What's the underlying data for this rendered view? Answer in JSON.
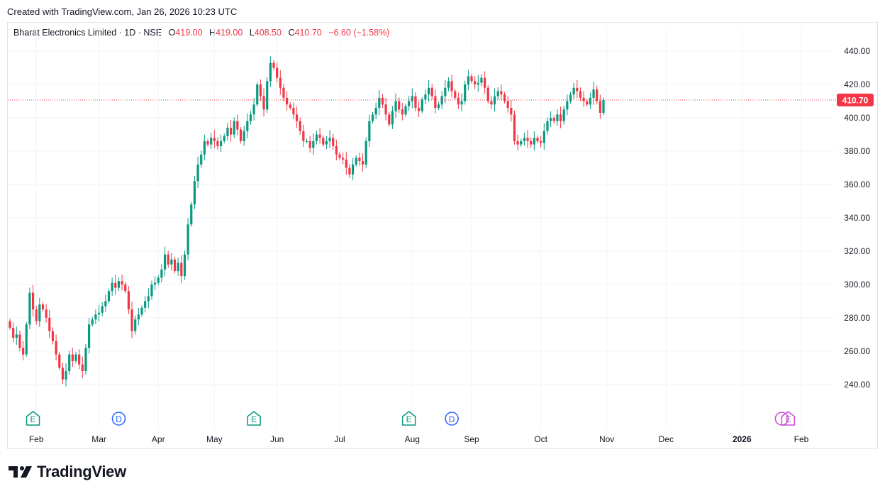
{
  "header": {
    "created_text": "Created with TradingView.com, Jan 26, 2026 10:23 UTC"
  },
  "legend": {
    "symbol": "Bharat Electronics Limited · 1D · NSE",
    "open_label": "O",
    "open": "419.00",
    "high_label": "H",
    "high": "419.00",
    "low_label": "L",
    "low": "408.50",
    "close_label": "C",
    "close": "410.70",
    "change": "−6.60 (−1.58%)"
  },
  "colors": {
    "up": "#089981",
    "down": "#f23645",
    "earnings": "#089981",
    "dividend": "#2962ff",
    "upcoming": "#c94ad8",
    "grid": "#f0f3fa",
    "axis_text": "#131722"
  },
  "footer": {
    "brand": "TradingView",
    "logo_icon": "tradingview-logo-icon"
  },
  "chart_data": {
    "type": "candlestick",
    "title": "Bharat Electronics Limited · 1D · NSE",
    "ylim": [
      228,
      446
    ],
    "y_ticks": [
      "240.00",
      "260.00",
      "280.00",
      "300.00",
      "320.00",
      "340.00",
      "360.00",
      "380.00",
      "400.00",
      "420.00",
      "440.00"
    ],
    "x_labels": [
      {
        "label": "Feb",
        "bar": 8
      },
      {
        "label": "Mar",
        "bar": 27
      },
      {
        "label": "Apr",
        "bar": 45
      },
      {
        "label": "May",
        "bar": 62
      },
      {
        "label": "Jun",
        "bar": 81
      },
      {
        "label": "Jul",
        "bar": 100
      },
      {
        "label": "Aug",
        "bar": 122
      },
      {
        "label": "Sep",
        "bar": 140
      },
      {
        "label": "Oct",
        "bar": 161
      },
      {
        "label": "Nov",
        "bar": 181
      },
      {
        "label": "Dec",
        "bar": 199
      },
      {
        "label": "2026",
        "bar": 222,
        "bold": true
      },
      {
        "label": "Feb",
        "bar": 240
      }
    ],
    "last_price": {
      "value": 410.7,
      "label": "410.70"
    },
    "events": [
      {
        "type": "earnings",
        "symbol": "E",
        "bar": 7
      },
      {
        "type": "dividend",
        "symbol": "D",
        "bar": 33
      },
      {
        "type": "earnings",
        "symbol": "E",
        "bar": 74
      },
      {
        "type": "earnings",
        "symbol": "E",
        "bar": 121
      },
      {
        "type": "dividend",
        "symbol": "D",
        "bar": 134
      },
      {
        "type": "upcoming",
        "symbol": "E",
        "bar": 236
      }
    ],
    "closes": [
      274,
      268,
      270,
      262,
      258,
      276,
      295,
      285,
      278,
      288,
      285,
      280,
      272,
      266,
      258,
      250,
      243,
      248,
      258,
      254,
      258,
      252,
      248,
      262,
      276,
      279,
      282,
      283,
      287,
      290,
      296,
      301,
      298,
      302,
      300,
      296,
      285,
      272,
      279,
      282,
      286,
      290,
      293,
      300,
      301,
      304,
      309,
      318,
      312,
      315,
      308,
      313,
      305,
      318,
      336,
      348,
      362,
      372,
      378,
      386,
      384,
      388,
      386,
      383,
      386,
      389,
      394,
      390,
      398,
      393,
      386,
      392,
      398,
      402,
      408,
      420,
      413,
      405,
      422,
      433,
      430,
      424,
      418,
      412,
      408,
      406,
      402,
      398,
      392,
      386,
      386,
      382,
      386,
      390,
      388,
      384,
      386,
      388,
      383,
      378,
      376,
      375,
      370,
      366,
      372,
      376,
      374,
      372,
      386,
      398,
      402,
      406,
      412,
      408,
      402,
      396,
      404,
      410,
      405,
      402,
      407,
      410,
      413,
      406,
      404,
      411,
      414,
      418,
      413,
      406,
      408,
      413,
      418,
      422,
      416,
      412,
      408,
      410,
      420,
      425,
      422,
      420,
      421,
      424,
      418,
      410,
      408,
      413,
      416,
      414,
      410,
      406,
      402,
      386,
      384,
      386,
      388,
      386,
      384,
      388,
      386,
      385,
      392,
      398,
      400,
      398,
      402,
      398,
      405,
      410,
      414,
      418,
      416,
      412,
      410,
      408,
      412,
      417,
      410,
      403,
      410.7
    ],
    "ohlc": "open = previous bar close; high/low = max/min plus wick"
  }
}
